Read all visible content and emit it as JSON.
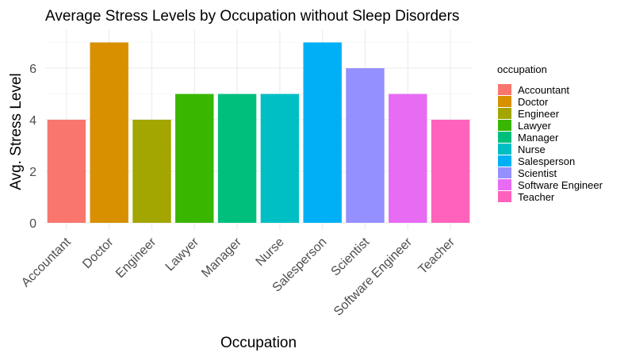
{
  "chart_data": {
    "type": "bar",
    "title": "Average Stress Levels by Occupation without Sleep Disorders",
    "xlabel": "Occupation",
    "ylabel": "Avg. Stress Level",
    "categories": [
      "Accountant",
      "Doctor",
      "Engineer",
      "Lawyer",
      "Manager",
      "Nurse",
      "Salesperson",
      "Scientist",
      "Software Engineer",
      "Teacher"
    ],
    "values": [
      4,
      7,
      4,
      5,
      5,
      5,
      7,
      6,
      5,
      4
    ],
    "colors": [
      "#F8766D",
      "#D89000",
      "#A3A500",
      "#39B600",
      "#00BF7D",
      "#00BFC4",
      "#00B0F6",
      "#9590FF",
      "#E76BF3",
      "#FF62BC"
    ],
    "yticks": [
      0,
      2,
      4,
      6
    ],
    "ylim": [
      0,
      7.35
    ],
    "grid": true,
    "legend": {
      "title": "occupation",
      "placement": "right"
    }
  }
}
